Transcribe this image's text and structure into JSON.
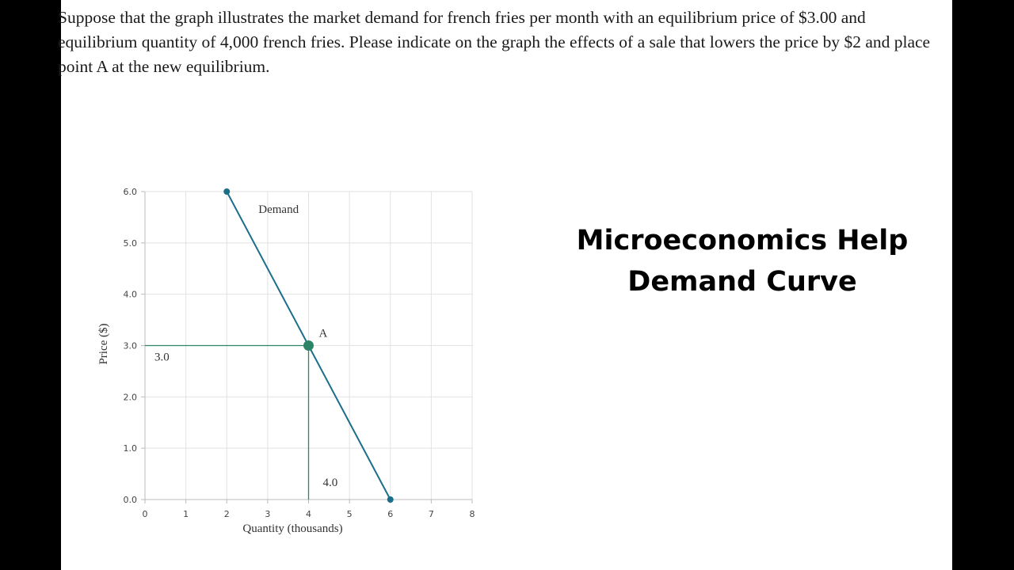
{
  "question": {
    "text": "Suppose that the graph illustrates the market demand for french fries per month with an equilibrium price of $3.00 and equilibrium quantity of 4,000 french fries. Please indicate on the graph the effects of a sale that lowers the price by $2 and place point A at the new equilibrium."
  },
  "side_title": {
    "line1": "Microeconomics Help",
    "line2": "Demand Curve"
  },
  "chart_data": {
    "type": "line",
    "xlabel": "Quantity (thousands)",
    "ylabel": "Price ($)",
    "xlim": [
      0,
      8
    ],
    "ylim": [
      0,
      6
    ],
    "x_ticks": [
      "0",
      "1",
      "2",
      "3",
      "4",
      "5",
      "6",
      "7",
      "8"
    ],
    "y_ticks": [
      "0.0",
      "1.0",
      "2.0",
      "3.0",
      "4.0",
      "5.0",
      "6.0"
    ],
    "grid": true,
    "series": [
      {
        "name": "Demand",
        "points": [
          [
            2,
            6
          ],
          [
            6,
            0
          ]
        ],
        "color": "#1a6f8a"
      }
    ],
    "point": {
      "label": "A",
      "x": 4,
      "y": 3,
      "color": "#2e8466"
    },
    "guide_color": "#2e8466",
    "guide_labels": {
      "x_value": "4.0",
      "y_value": "3.0"
    }
  }
}
